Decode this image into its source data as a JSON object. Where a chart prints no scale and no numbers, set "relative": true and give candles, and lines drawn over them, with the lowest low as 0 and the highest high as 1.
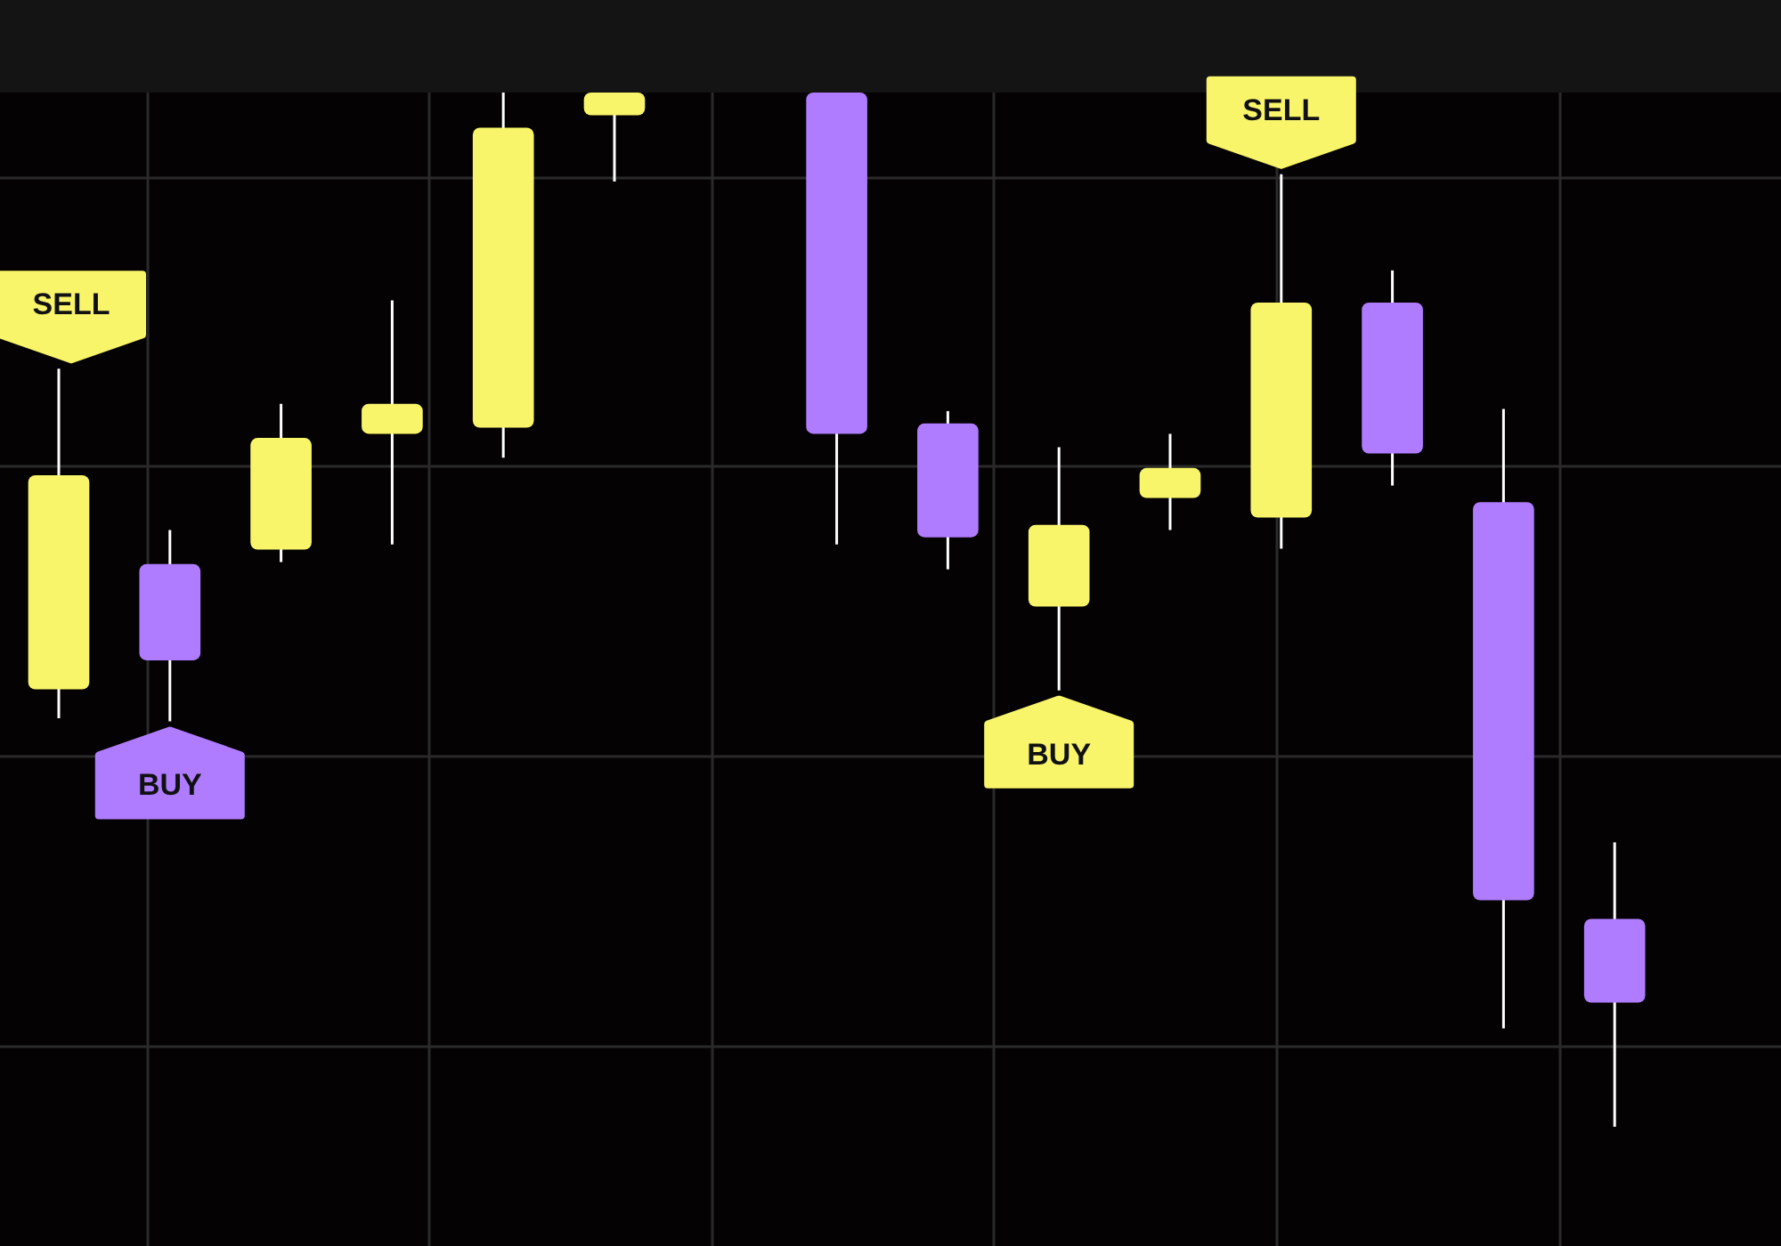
{
  "chart_data": {
    "type": "candlestick",
    "relative": true,
    "grid": true,
    "categories": [
      null,
      null,
      null,
      null,
      null,
      null,
      null,
      null,
      null,
      null,
      null,
      null,
      null,
      null,
      null
    ],
    "ohlc": [
      [
        0.423,
        0.733,
        0.395,
        0.63
      ],
      [
        0.544,
        0.577,
        0.392,
        0.451
      ],
      [
        0.558,
        0.699,
        0.546,
        0.666
      ],
      [
        0.67,
        0.799,
        0.563,
        0.699
      ],
      [
        0.676,
        1,
        0.647,
        0.966
      ],
      [
        0.978,
        1,
        0.914,
        1
      ],
      null,
      [
        1,
        1,
        0.563,
        0.67
      ],
      [
        0.68,
        0.692,
        0.539,
        0.57
      ],
      [
        0.503,
        0.657,
        0.422,
        0.582
      ],
      [
        0.608,
        0.67,
        0.577,
        0.637
      ],
      [
        0.589,
        0.921,
        0.559,
        0.797
      ],
      [
        0.797,
        0.828,
        0.62,
        0.651
      ],
      [
        0.604,
        0.694,
        0.095,
        0.219
      ],
      [
        0.201,
        0.275,
        0,
        0.12
      ]
    ],
    "colors": [
      "#f8f56b",
      "#b07cff",
      "#f8f56b",
      "#f8f56b",
      "#f8f56b",
      "#f8f56b",
      null,
      "#b07cff",
      "#b07cff",
      "#f8f56b",
      "#f8f56b",
      "#f8f56b",
      "#b07cff",
      "#b07cff",
      "#b07cff"
    ],
    "annotations": [
      "SELL",
      "BUY",
      "BUY",
      "SELL"
    ]
  }
}
